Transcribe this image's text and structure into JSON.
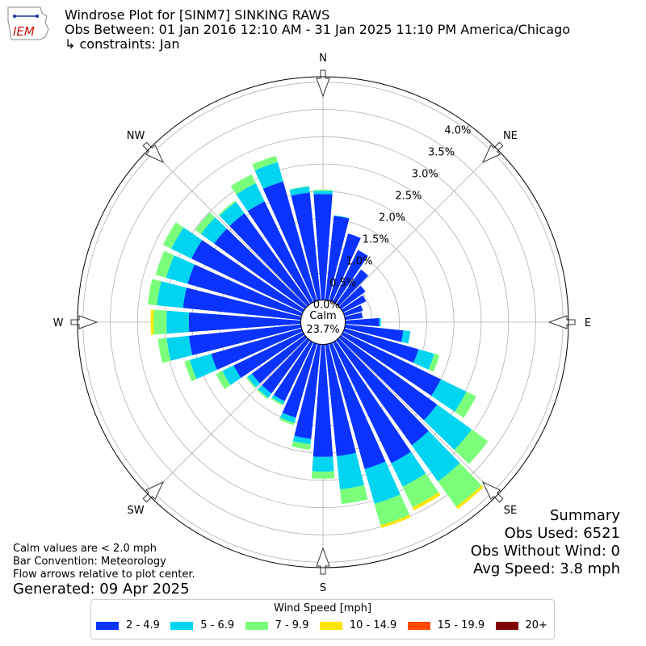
{
  "header": {
    "title": "Windrose Plot for [SINM7] SINKING RAWS",
    "subtitle": "Obs Between: 01 Jan 2016 12:10 AM - 31 Jan 2025 11:10 PM America/Chicago",
    "constraints": "↳ constraints: Jan",
    "logo_text": "IEM"
  },
  "summary": {
    "heading": "Summary",
    "obs_used": "Obs Used: 6521",
    "obs_without_wind": "Obs Without Wind: 0",
    "avg_speed": "Avg Speed: 3.8 mph"
  },
  "notes": {
    "calm_note": "Calm values are < 2.0 mph",
    "bar_convention": "Bar Convention: Meteorology",
    "flow_note": "Flow arrows relative to plot center.",
    "generated": "Generated: 09 Apr 2025"
  },
  "legend": {
    "title": "Wind Speed [mph]",
    "items": [
      {
        "label": "2 - 4.9",
        "color": "#0a33ff"
      },
      {
        "label": "5 - 6.9",
        "color": "#00d4f0"
      },
      {
        "label": "7 - 9.9",
        "color": "#7bff7b"
      },
      {
        "label": "10 - 14.9",
        "color": "#ffe600"
      },
      {
        "label": "15 - 19.9",
        "color": "#ff4a00"
      },
      {
        "label": "20+",
        "color": "#800000"
      }
    ]
  },
  "chart_data": {
    "type": "windrose",
    "calm_label": "Calm",
    "calm_value": "23.7%",
    "compass_labels": [
      "N",
      "NE",
      "E",
      "SE",
      "S",
      "SW",
      "W",
      "NW"
    ],
    "radial_ticks": [
      "0.0%",
      "0.5%",
      "1.0%",
      "1.5%",
      "2.0%",
      "2.5%",
      "3.0%",
      "3.5%",
      "4.0%"
    ],
    "radial_tick_values": [
      0,
      0.5,
      1.0,
      1.5,
      2.0,
      2.5,
      3.0,
      3.5,
      4.0
    ],
    "rmax": 4.5,
    "calm_offset": 0.4,
    "sector_width_deg": 10,
    "directions_deg": [
      0,
      10,
      20,
      30,
      40,
      50,
      60,
      70,
      80,
      90,
      100,
      110,
      120,
      130,
      140,
      150,
      160,
      170,
      180,
      190,
      200,
      210,
      220,
      230,
      240,
      250,
      260,
      270,
      280,
      290,
      300,
      310,
      320,
      330,
      340,
      350
    ],
    "series": [
      {
        "name": "2 - 4.9",
        "color": "#0a33ff",
        "values": [
          1.95,
          1.56,
          1.29,
          1.07,
          0.79,
          0.56,
          0.48,
          0.36,
          0.33,
          0.63,
          1.08,
          1.42,
          2.0,
          2.18,
          2.38,
          2.47,
          2.4,
          2.07,
          2.07,
          1.75,
          1.42,
          1.21,
          1.21,
          1.21,
          1.42,
          1.73,
          2.07,
          2.06,
          2.18,
          2.18,
          2.28,
          2.06,
          2.06,
          2.06,
          2.28,
          1.99
        ]
      },
      {
        "name": "5 - 6.9",
        "color": "#00d4f0",
        "values": [
          0.06,
          0.01,
          0.0,
          0.0,
          0.0,
          0.0,
          0.0,
          0.0,
          0.0,
          0.03,
          0.13,
          0.3,
          0.52,
          0.78,
          0.82,
          0.48,
          0.66,
          0.61,
          0.27,
          0.1,
          0.1,
          0.06,
          0.1,
          0.1,
          0.23,
          0.41,
          0.41,
          0.41,
          0.48,
          0.41,
          0.41,
          0.3,
          0.26,
          0.37,
          0.37,
          0.11
        ]
      },
      {
        "name": "7 - 9.9",
        "color": "#7bff7b",
        "values": [
          0.02,
          0.0,
          0.0,
          0.0,
          0.0,
          0.0,
          0.0,
          0.0,
          0.0,
          0.0,
          0.0,
          0.1,
          0.2,
          0.37,
          0.57,
          0.42,
          0.41,
          0.27,
          0.13,
          0.1,
          0.04,
          0.03,
          0.03,
          0.03,
          0.13,
          0.1,
          0.16,
          0.24,
          0.17,
          0.2,
          0.17,
          0.13,
          0.03,
          0.18,
          0.12,
          0.01
        ]
      },
      {
        "name": "10 - 14.9",
        "color": "#ffe600",
        "values": [
          0,
          0,
          0,
          0,
          0,
          0,
          0,
          0,
          0,
          0,
          0,
          0,
          0,
          0,
          0.05,
          0.06,
          0.05,
          0,
          0,
          0,
          0,
          0,
          0,
          0,
          0,
          0,
          0,
          0.05,
          0,
          0,
          0,
          0,
          0,
          0,
          0,
          0
        ]
      },
      {
        "name": "15 - 19.9",
        "color": "#ff4a00",
        "values": [
          0,
          0,
          0,
          0,
          0,
          0,
          0,
          0,
          0,
          0,
          0,
          0,
          0,
          0,
          0,
          0,
          0,
          0,
          0,
          0,
          0,
          0,
          0,
          0,
          0,
          0,
          0,
          0,
          0,
          0,
          0,
          0,
          0,
          0,
          0,
          0
        ]
      },
      {
        "name": "20+",
        "color": "#800000",
        "values": [
          0,
          0,
          0,
          0,
          0,
          0,
          0,
          0,
          0,
          0,
          0,
          0,
          0,
          0,
          0,
          0,
          0,
          0,
          0,
          0,
          0,
          0,
          0,
          0,
          0,
          0,
          0,
          0,
          0,
          0,
          0,
          0,
          0,
          0,
          0,
          0
        ]
      }
    ]
  }
}
